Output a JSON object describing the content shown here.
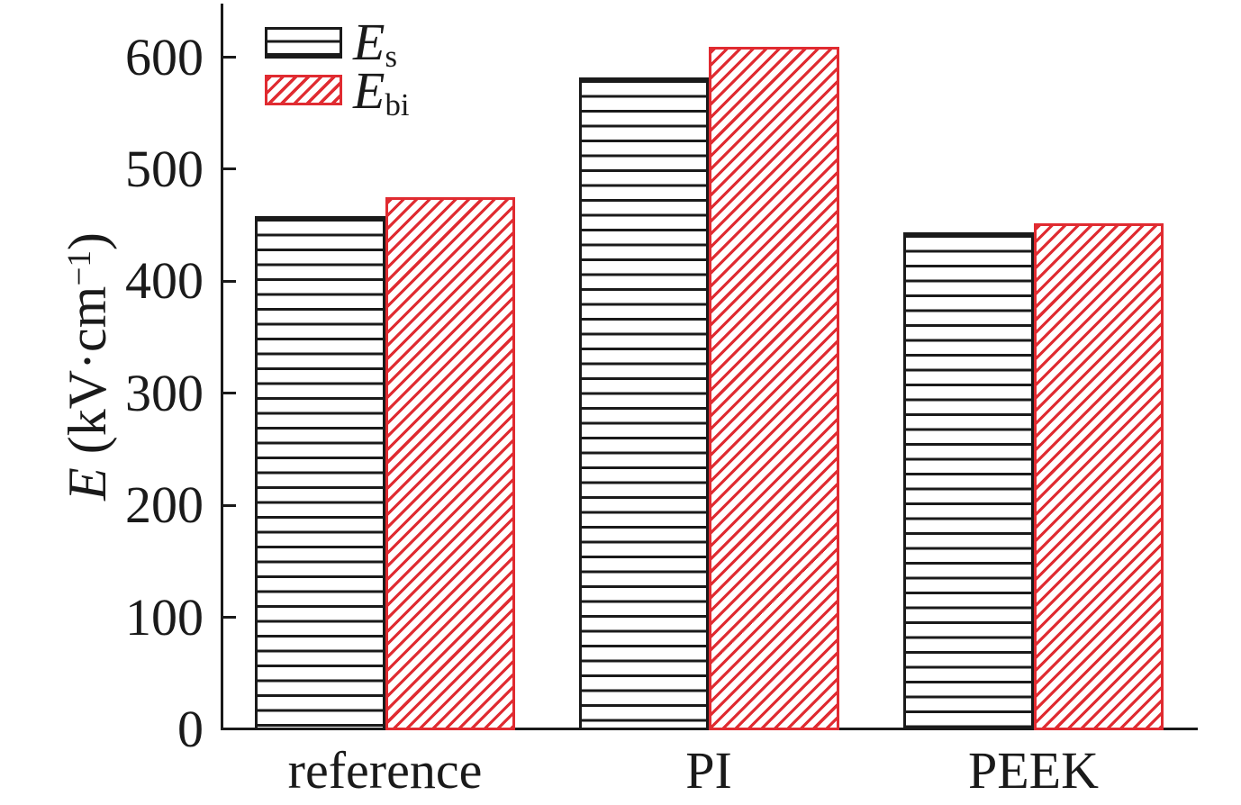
{
  "figure": {
    "background": "#ffffff",
    "colors": {
      "axis": "#1a1a1a",
      "series_es": "#1a1a1a",
      "series_ebi": "#e02b31"
    }
  },
  "axis": {
    "ylabel_var": "E",
    "ylabel_pre": " (kV·cm",
    "ylabel_sup": "−1",
    "ylabel_post": ")"
  },
  "legend": {
    "position": "top-left",
    "items": [
      {
        "main": "E",
        "sub": "s",
        "swatch": "black-horizontal-hatch"
      },
      {
        "main": "E",
        "sub": "bi",
        "swatch": "red-diagonal-hatch"
      }
    ]
  },
  "chart_data": {
    "type": "bar",
    "title": "",
    "categories": [
      "reference",
      "PI",
      "PEEK"
    ],
    "series": [
      {
        "name": "Es",
        "label_main": "E",
        "label_sub": "s",
        "hatch": "horizontal",
        "color": "#1a1a1a",
        "values": [
          458,
          582,
          444
        ]
      },
      {
        "name": "Ebi",
        "label_main": "E",
        "label_sub": "bi",
        "hatch": "diagonal",
        "color": "#e02b31",
        "values": [
          475,
          609,
          452
        ]
      }
    ],
    "xlabel": "",
    "ylabel": "E (kV·cm⁻¹)",
    "ylim": [
      0,
      650
    ],
    "yticks": [
      0,
      100,
      200,
      300,
      400,
      500,
      600
    ],
    "grid": false,
    "legend_position": "top-left"
  }
}
